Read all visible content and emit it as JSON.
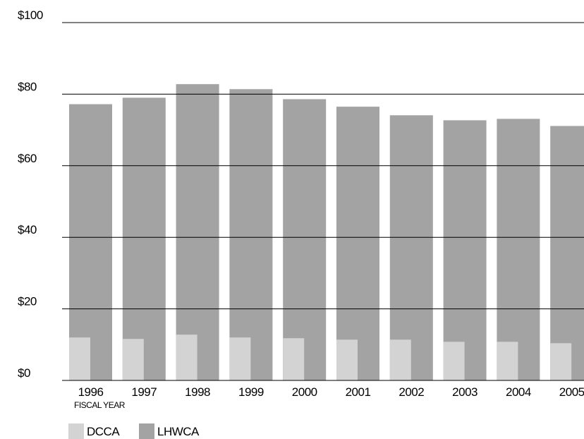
{
  "chart_data": {
    "type": "bar",
    "x_label": "FISCAL YEAR",
    "categories": [
      "1996",
      "1997",
      "1998",
      "1999",
      "2000",
      "2001",
      "2002",
      "2003",
      "2004",
      "2005"
    ],
    "series": [
      {
        "name": "DCCA",
        "color": "#d3d3d3",
        "values": [
          12.0,
          11.6,
          12.8,
          12.0,
          11.8,
          11.4,
          11.4,
          10.8,
          10.8,
          10.4
        ]
      },
      {
        "name": "LHWCA",
        "color": "#a3a3a3",
        "values": [
          77.2,
          79.0,
          82.8,
          81.4,
          78.6,
          76.5,
          74.1,
          72.7,
          73.1,
          71.1
        ]
      }
    ],
    "ylim": [
      0,
      100
    ],
    "yticks": [
      {
        "value": 0,
        "label": "$0"
      },
      {
        "value": 20,
        "label": "$20"
      },
      {
        "value": 40,
        "label": "$40"
      },
      {
        "value": 60,
        "label": "$60"
      },
      {
        "value": 80,
        "label": "$80"
      },
      {
        "value": 100,
        "label": "$100"
      }
    ],
    "grid": true
  }
}
